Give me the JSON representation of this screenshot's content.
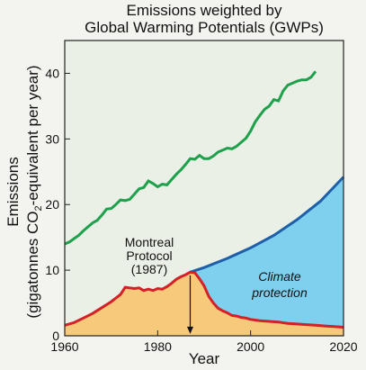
{
  "chart_data": {
    "type": "area",
    "title_lines": [
      "Emissions weighted by",
      "Global Warming Potentials (GWPs)"
    ],
    "xlabel": "Year",
    "ylabel_line1": "Emissions",
    "ylabel_line2_prefix": "(gigatonnes CO",
    "ylabel_line2_sub": "2",
    "ylabel_line2_suffix": "-equivalent per year)",
    "xlim": [
      1960,
      2020
    ],
    "ylim": [
      0,
      45
    ],
    "xticks": [
      1960,
      1980,
      2000,
      2020
    ],
    "yticks": [
      0,
      10,
      20,
      30,
      40
    ],
    "grid": false,
    "colors": {
      "plot_background": "#eaf0e6",
      "page_background": "#f3f3ef",
      "green_line": "#1fa04c",
      "red_line": "#d42027",
      "orange_fill": "#f6c97b",
      "blue_fill": "#7fd0ef",
      "blue_line": "#1f5fa8"
    },
    "series": [
      {
        "values_xy": [
          [
            1960,
            14
          ],
          [
            1961,
            14.3
          ],
          [
            1962,
            14.8
          ],
          [
            1963,
            15.3
          ],
          [
            1964,
            16
          ],
          [
            1965,
            16.6
          ],
          [
            1966,
            17.2
          ],
          [
            1967,
            17.6
          ],
          [
            1968,
            18.4
          ],
          [
            1969,
            19.3
          ],
          [
            1970,
            19.4
          ],
          [
            1971,
            20
          ],
          [
            1972,
            20.7
          ],
          [
            1973,
            20.6
          ],
          [
            1974,
            20.8
          ],
          [
            1975,
            21.6
          ],
          [
            1976,
            22.4
          ],
          [
            1977,
            22.6
          ],
          [
            1978,
            23.6
          ],
          [
            1979,
            23.2
          ],
          [
            1980,
            22.7
          ],
          [
            1981,
            23.1
          ],
          [
            1982,
            23
          ],
          [
            1983,
            23.8
          ],
          [
            1984,
            24.6
          ],
          [
            1985,
            25.3
          ],
          [
            1986,
            26.1
          ],
          [
            1987,
            27
          ],
          [
            1988,
            26.9
          ],
          [
            1989,
            27.5
          ],
          [
            1990,
            27
          ],
          [
            1991,
            27
          ],
          [
            1992,
            27.4
          ],
          [
            1993,
            28
          ],
          [
            1994,
            28.3
          ],
          [
            1995,
            28.6
          ],
          [
            1996,
            28.5
          ],
          [
            1997,
            28.9
          ],
          [
            1998,
            29.5
          ],
          [
            1999,
            30.1
          ],
          [
            2000,
            31.2
          ],
          [
            2001,
            32.6
          ],
          [
            2002,
            33.6
          ],
          [
            2003,
            34.5
          ],
          [
            2004,
            35
          ],
          [
            2005,
            36
          ],
          [
            2006,
            35.8
          ],
          [
            2007,
            37.3
          ],
          [
            2008,
            38.2
          ],
          [
            2009,
            38.5
          ],
          [
            2010,
            38.8
          ],
          [
            2011,
            39
          ],
          [
            2012,
            39
          ],
          [
            2013,
            39.4
          ],
          [
            2014,
            40.3
          ]
        ]
      },
      {
        "values_xy": [
          [
            1960,
            1.6
          ],
          [
            1962,
            2
          ],
          [
            1964,
            2.7
          ],
          [
            1966,
            3.4
          ],
          [
            1968,
            4.3
          ],
          [
            1970,
            5.2
          ],
          [
            1972,
            6.3
          ],
          [
            1973,
            7.4
          ],
          [
            1974,
            7.3
          ],
          [
            1975,
            7.2
          ],
          [
            1976,
            7.3
          ],
          [
            1977,
            6.9
          ],
          [
            1978,
            7.1
          ],
          [
            1979,
            6.9
          ],
          [
            1980,
            7.2
          ],
          [
            1981,
            7.1
          ],
          [
            1982,
            7.5
          ],
          [
            1983,
            8
          ],
          [
            1984,
            8.6
          ],
          [
            1985,
            9
          ],
          [
            1986,
            9.3
          ],
          [
            1987,
            9.7
          ],
          [
            1988,
            9.6
          ],
          [
            1989,
            8.7
          ],
          [
            1990,
            7.6
          ],
          [
            1991,
            6
          ],
          [
            1992,
            5
          ],
          [
            1993,
            4.2
          ],
          [
            1994,
            3.8
          ],
          [
            1995,
            3.5
          ],
          [
            1996,
            3.1
          ],
          [
            1997,
            3
          ],
          [
            1998,
            2.8
          ],
          [
            1999,
            2.7
          ],
          [
            2000,
            2.5
          ],
          [
            2002,
            2.3
          ],
          [
            2004,
            2.2
          ],
          [
            2006,
            2.1
          ],
          [
            2008,
            1.9
          ],
          [
            2010,
            1.8
          ],
          [
            2012,
            1.7
          ],
          [
            2014,
            1.6
          ],
          [
            2016,
            1.5
          ],
          [
            2018,
            1.4
          ],
          [
            2020,
            1.3
          ]
        ]
      },
      {
        "values_xy": [
          [
            1987,
            9.7
          ],
          [
            1990,
            10.4
          ],
          [
            1995,
            11.8
          ],
          [
            2000,
            13.4
          ],
          [
            2005,
            15.3
          ],
          [
            2010,
            17.7
          ],
          [
            2015,
            20.5
          ],
          [
            2020,
            24.2
          ]
        ]
      }
    ],
    "annotations": {
      "montreal_lines": [
        "Montreal",
        "Protocol",
        "(1987)"
      ],
      "montreal_arrow_year": 1987,
      "climate_lines": [
        "Climate",
        "protection"
      ]
    }
  }
}
